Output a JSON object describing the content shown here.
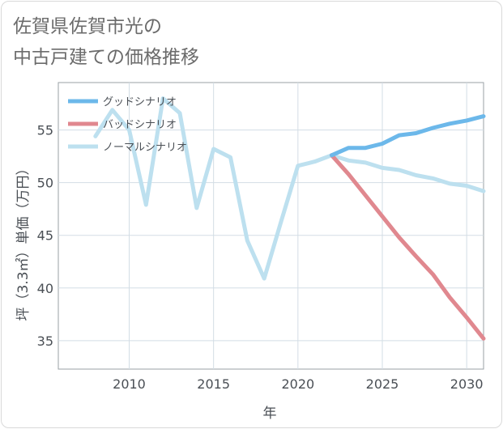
{
  "chart_data": {
    "type": "line",
    "title_lines": [
      "佐賀県佐賀市光の",
      "中古戸建ての価格推移"
    ],
    "xlabel": "年",
    "ylabel": "坪（3.3㎡）単価（万円）",
    "xlim": [
      2005.8,
      2031
    ],
    "ylim": [
      32.3,
      59.5
    ],
    "x_ticks": [
      2010,
      2015,
      2020,
      2025,
      2030
    ],
    "y_ticks": [
      35,
      40,
      45,
      50,
      55
    ],
    "legend_position": "top-left",
    "series": [
      {
        "name": "グッドシナリオ",
        "color": "#6cb8ea",
        "x": [
          2022,
          2023,
          2024,
          2025,
          2026,
          2027,
          2028,
          2029,
          2030,
          2031
        ],
        "y": [
          52.6,
          53.3,
          53.3,
          53.7,
          54.5,
          54.7,
          55.2,
          55.6,
          55.9,
          56.3
        ]
      },
      {
        "name": "バッドシナリオ",
        "color": "#e0888f",
        "x": [
          2022,
          2023,
          2024,
          2025,
          2026,
          2027,
          2028,
          2029,
          2030,
          2031
        ],
        "y": [
          52.6,
          50.8,
          48.8,
          46.8,
          44.8,
          43.0,
          41.3,
          39.1,
          37.2,
          35.2
        ]
      },
      {
        "name": "ノーマルシナリオ",
        "color": "#bde0ef",
        "x": [
          2008,
          2009,
          2010,
          2011,
          2012,
          2013,
          2014,
          2015,
          2016,
          2017,
          2018,
          2019,
          2020,
          2021,
          2022,
          2023,
          2024,
          2025,
          2026,
          2027,
          2028,
          2029,
          2030,
          2031
        ],
        "y": [
          54.4,
          56.9,
          55.0,
          47.9,
          58.0,
          56.6,
          47.6,
          53.2,
          52.4,
          44.5,
          40.9,
          46.3,
          51.6,
          52.0,
          52.6,
          52.1,
          51.9,
          51.4,
          51.2,
          50.7,
          50.4,
          49.9,
          49.7,
          49.2
        ]
      }
    ]
  }
}
